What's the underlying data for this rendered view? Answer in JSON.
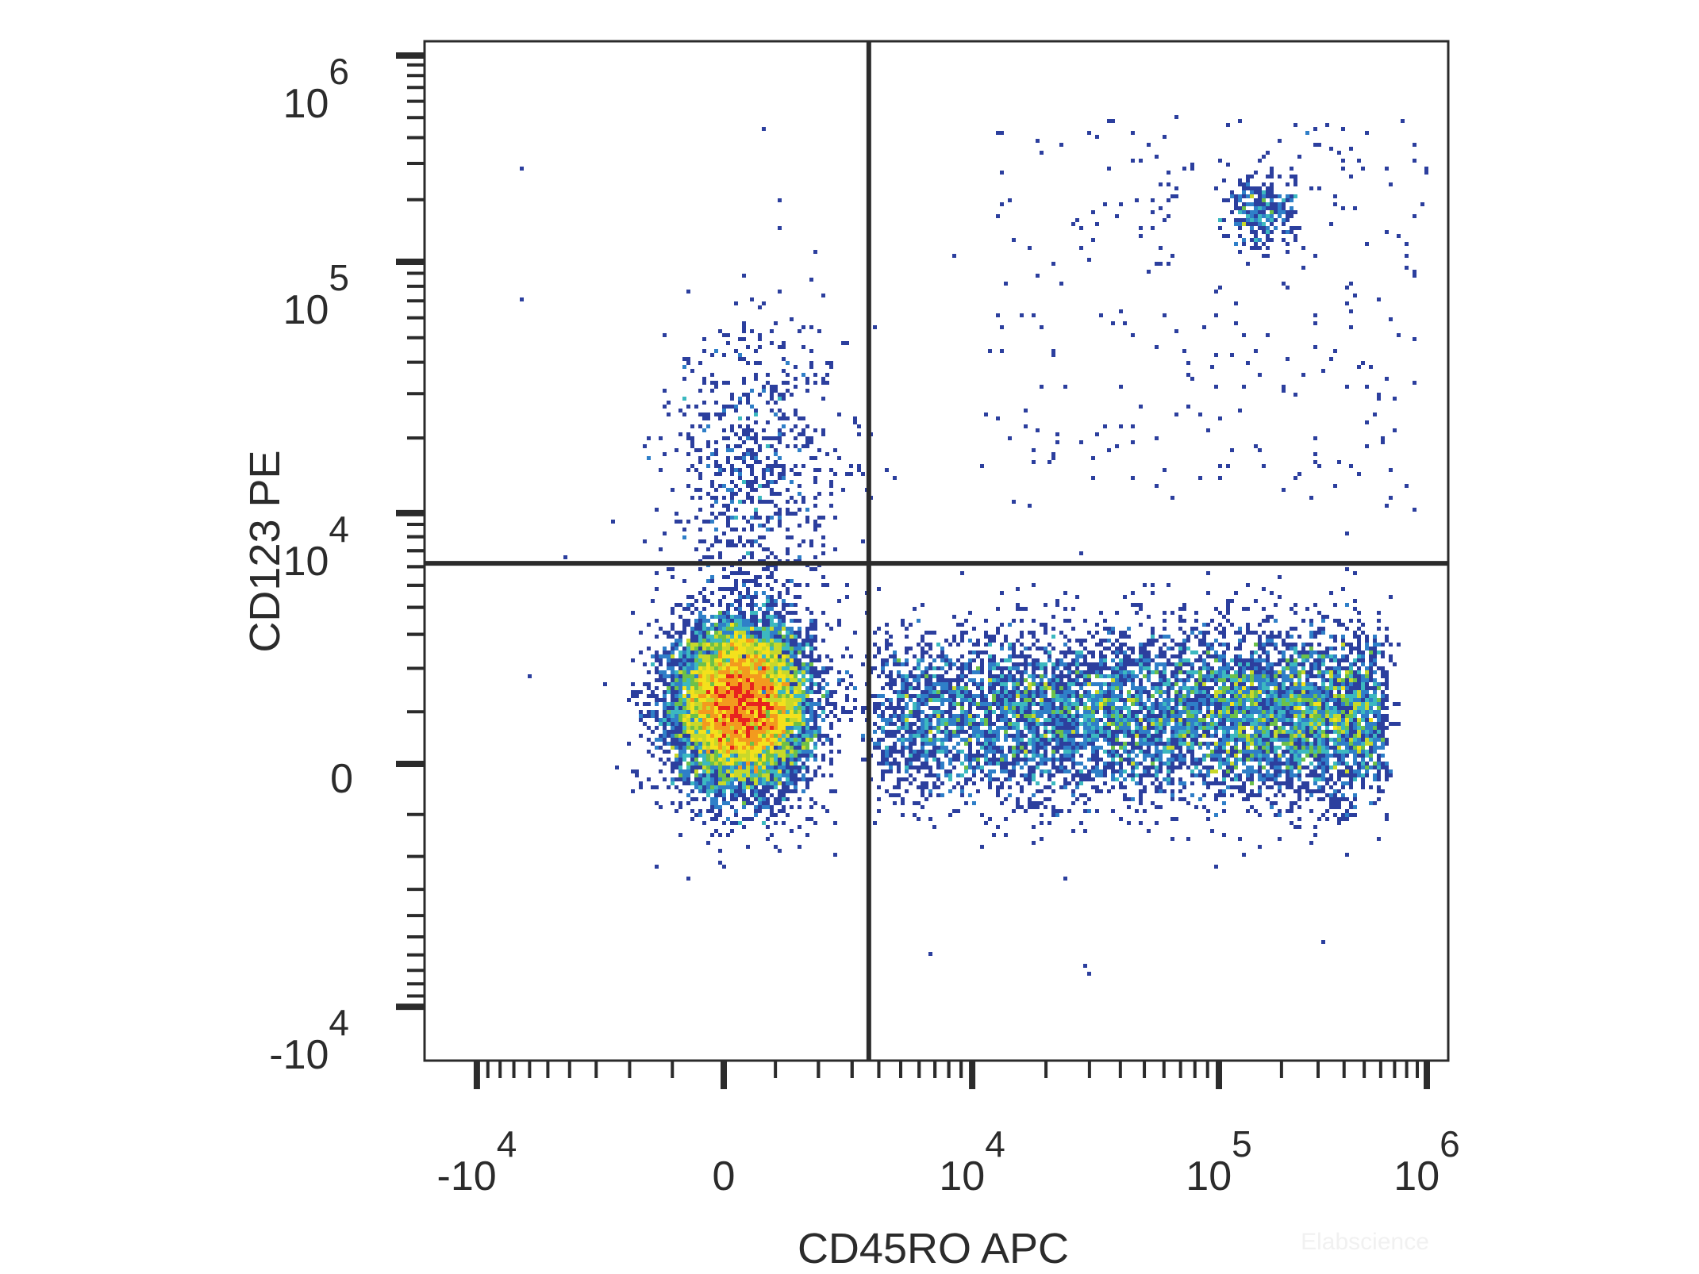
{
  "chart_data": {
    "type": "scatter",
    "subtype": "flow-cytometry density dot plot with quadrant gate",
    "xlabel": "CD45RO APC",
    "ylabel": "CD123 PE",
    "x_scale": "biexponential",
    "y_scale": "biexponential",
    "xlim": [
      -15000,
      1200000
    ],
    "ylim": [
      -14000,
      1500000
    ],
    "x_ticks": [
      {
        "value": -10000,
        "base": "-10",
        "exp": "4"
      },
      {
        "value": 0,
        "base": "0",
        "exp": ""
      },
      {
        "value": 10000,
        "base": "10",
        "exp": "4"
      },
      {
        "value": 100000,
        "base": "10",
        "exp": "5"
      },
      {
        "value": 1000000,
        "base": "10",
        "exp": "6"
      }
    ],
    "y_ticks": [
      {
        "value": -10000,
        "base": "-10",
        "exp": "4"
      },
      {
        "value": 0,
        "base": "0",
        "exp": ""
      },
      {
        "value": 10000,
        "base": "10",
        "exp": "4"
      },
      {
        "value": 100000,
        "base": "10",
        "exp": "5"
      },
      {
        "value": 1000000,
        "base": "10",
        "exp": "6"
      }
    ],
    "quadrant_gate": {
      "x": 3600,
      "y": 6200
    },
    "populations": [
      {
        "description": "CD45RO- CD123- main cluster",
        "center": [
          350,
          1150
        ]
      },
      {
        "description": "CD45RO+ CD123- band",
        "x_range": [
          3800,
          600000
        ],
        "y_center": 930
      },
      {
        "description": "CD45RO+ CD123 high cluster",
        "center": [
          160000,
          170000
        ]
      },
      {
        "description": "CD45RO- CD123 dim tail",
        "center": [
          600,
          15000
        ]
      }
    ],
    "density_colors": [
      "#2c3f9e",
      "#2f7fc8",
      "#3cb8c0",
      "#6cc04a",
      "#c8d82a",
      "#f4e11c",
      "#f39a1e",
      "#e8231f"
    ],
    "grid": false,
    "legend": "none",
    "watermark": "Elabscience"
  }
}
